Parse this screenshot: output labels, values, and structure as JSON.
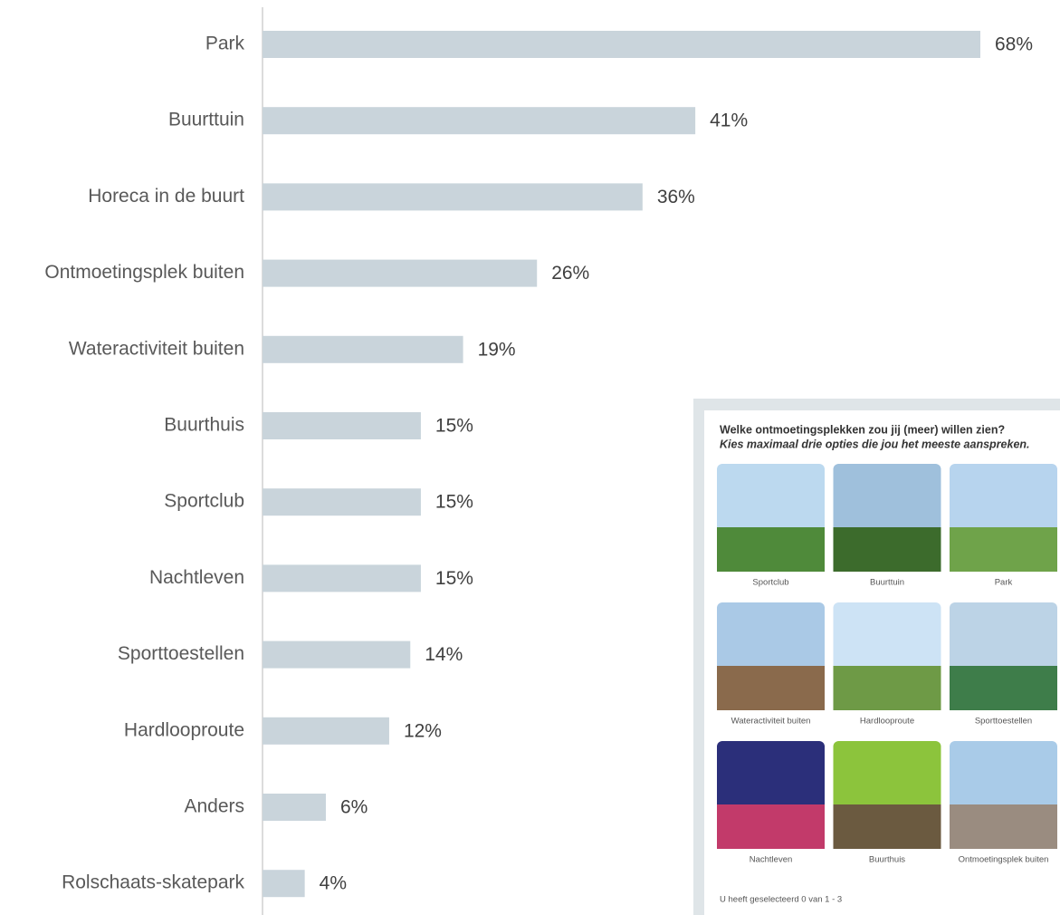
{
  "chart_data": {
    "type": "bar",
    "orientation": "horizontal",
    "categories": [
      "Park",
      "Buurttuin",
      "Horeca in de buurt",
      "Ontmoetingsplek buiten",
      "Wateractiviteit buiten",
      "Buurthuis",
      "Sportclub",
      "Nachtleven",
      "Sporttoestellen",
      "Hardlooproute",
      "Anders",
      "Rolschaats-skatepark"
    ],
    "values": [
      68,
      41,
      36,
      26,
      19,
      15,
      15,
      15,
      14,
      12,
      6,
      4
    ],
    "value_labels": [
      "68%",
      "41%",
      "36%",
      "26%",
      "19%",
      "15%",
      "15%",
      "15%",
      "14%",
      "12%",
      "6%",
      "4%"
    ],
    "color": "#c9d4db"
  },
  "inset": {
    "question": "Welke ontmoetingsplekken zou jij (meer) willen zien?",
    "instruction": "Kies maximaal drie opties die jou het meeste aanspreken.",
    "options": [
      "Sportclub",
      "Buurttuin",
      "Park",
      "Wateractiviteit buiten",
      "Hardlooproute",
      "Sporttoestellen",
      "Nachtleven",
      "Buurthuis",
      "Ontmoetingsplek buiten"
    ],
    "footer": "U heeft geselecteerd 0 van 1 - 3"
  }
}
